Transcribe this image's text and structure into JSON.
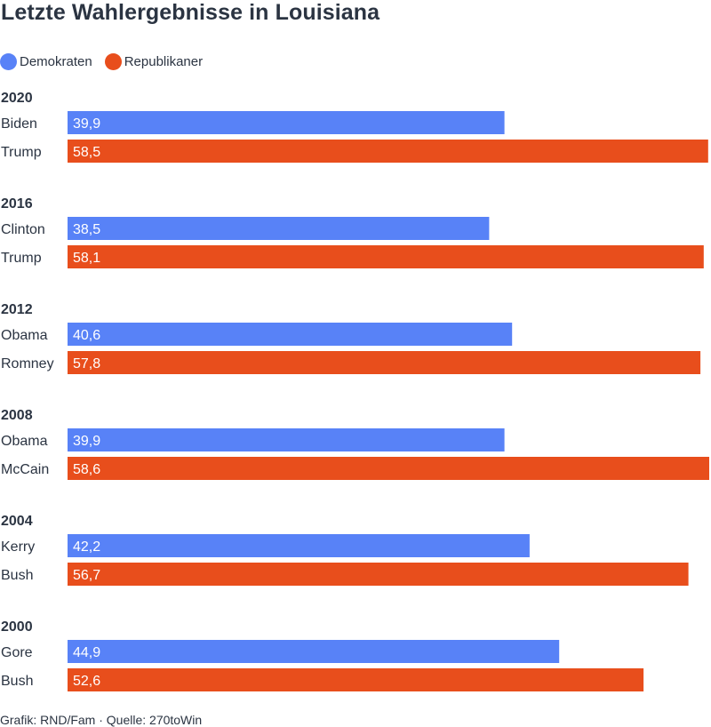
{
  "title": "Letzte Wahlergebnisse in Louisiana",
  "legend": {
    "dem_label": "Demokraten",
    "rep_label": "Republikaner"
  },
  "colors": {
    "dem": "#5882f7",
    "rep": "#e84e1c",
    "text": "#2b3442"
  },
  "footer": "Grafik: RND/Fam · Quelle: 270toWin",
  "chart_data": {
    "type": "bar",
    "orientation": "horizontal",
    "title": "Letzte Wahlergebnisse in Louisiana",
    "series_names": [
      "Demokraten",
      "Republikaner"
    ],
    "xlim": [
      0,
      58.6
    ],
    "groups": [
      {
        "year": "2020",
        "rows": [
          {
            "candidate": "Biden",
            "party": "dem",
            "value": 39.9,
            "label": "39,9"
          },
          {
            "candidate": "Trump",
            "party": "rep",
            "value": 58.5,
            "label": "58,5"
          }
        ]
      },
      {
        "year": "2016",
        "rows": [
          {
            "candidate": "Clinton",
            "party": "dem",
            "value": 38.5,
            "label": "38,5"
          },
          {
            "candidate": "Trump",
            "party": "rep",
            "value": 58.1,
            "label": "58,1"
          }
        ]
      },
      {
        "year": "2012",
        "rows": [
          {
            "candidate": "Obama",
            "party": "dem",
            "value": 40.6,
            "label": "40,6"
          },
          {
            "candidate": "Romney",
            "party": "rep",
            "value": 57.8,
            "label": "57,8"
          }
        ]
      },
      {
        "year": "2008",
        "rows": [
          {
            "candidate": "Obama",
            "party": "dem",
            "value": 39.9,
            "label": "39,9"
          },
          {
            "candidate": "McCain",
            "party": "rep",
            "value": 58.6,
            "label": "58,6"
          }
        ]
      },
      {
        "year": "2004",
        "rows": [
          {
            "candidate": "Kerry",
            "party": "dem",
            "value": 42.2,
            "label": "42,2"
          },
          {
            "candidate": "Bush",
            "party": "rep",
            "value": 56.7,
            "label": "56,7"
          }
        ]
      },
      {
        "year": "2000",
        "rows": [
          {
            "candidate": "Gore",
            "party": "dem",
            "value": 44.9,
            "label": "44,9"
          },
          {
            "candidate": "Bush",
            "party": "rep",
            "value": 52.6,
            "label": "52,6"
          }
        ]
      }
    ]
  }
}
